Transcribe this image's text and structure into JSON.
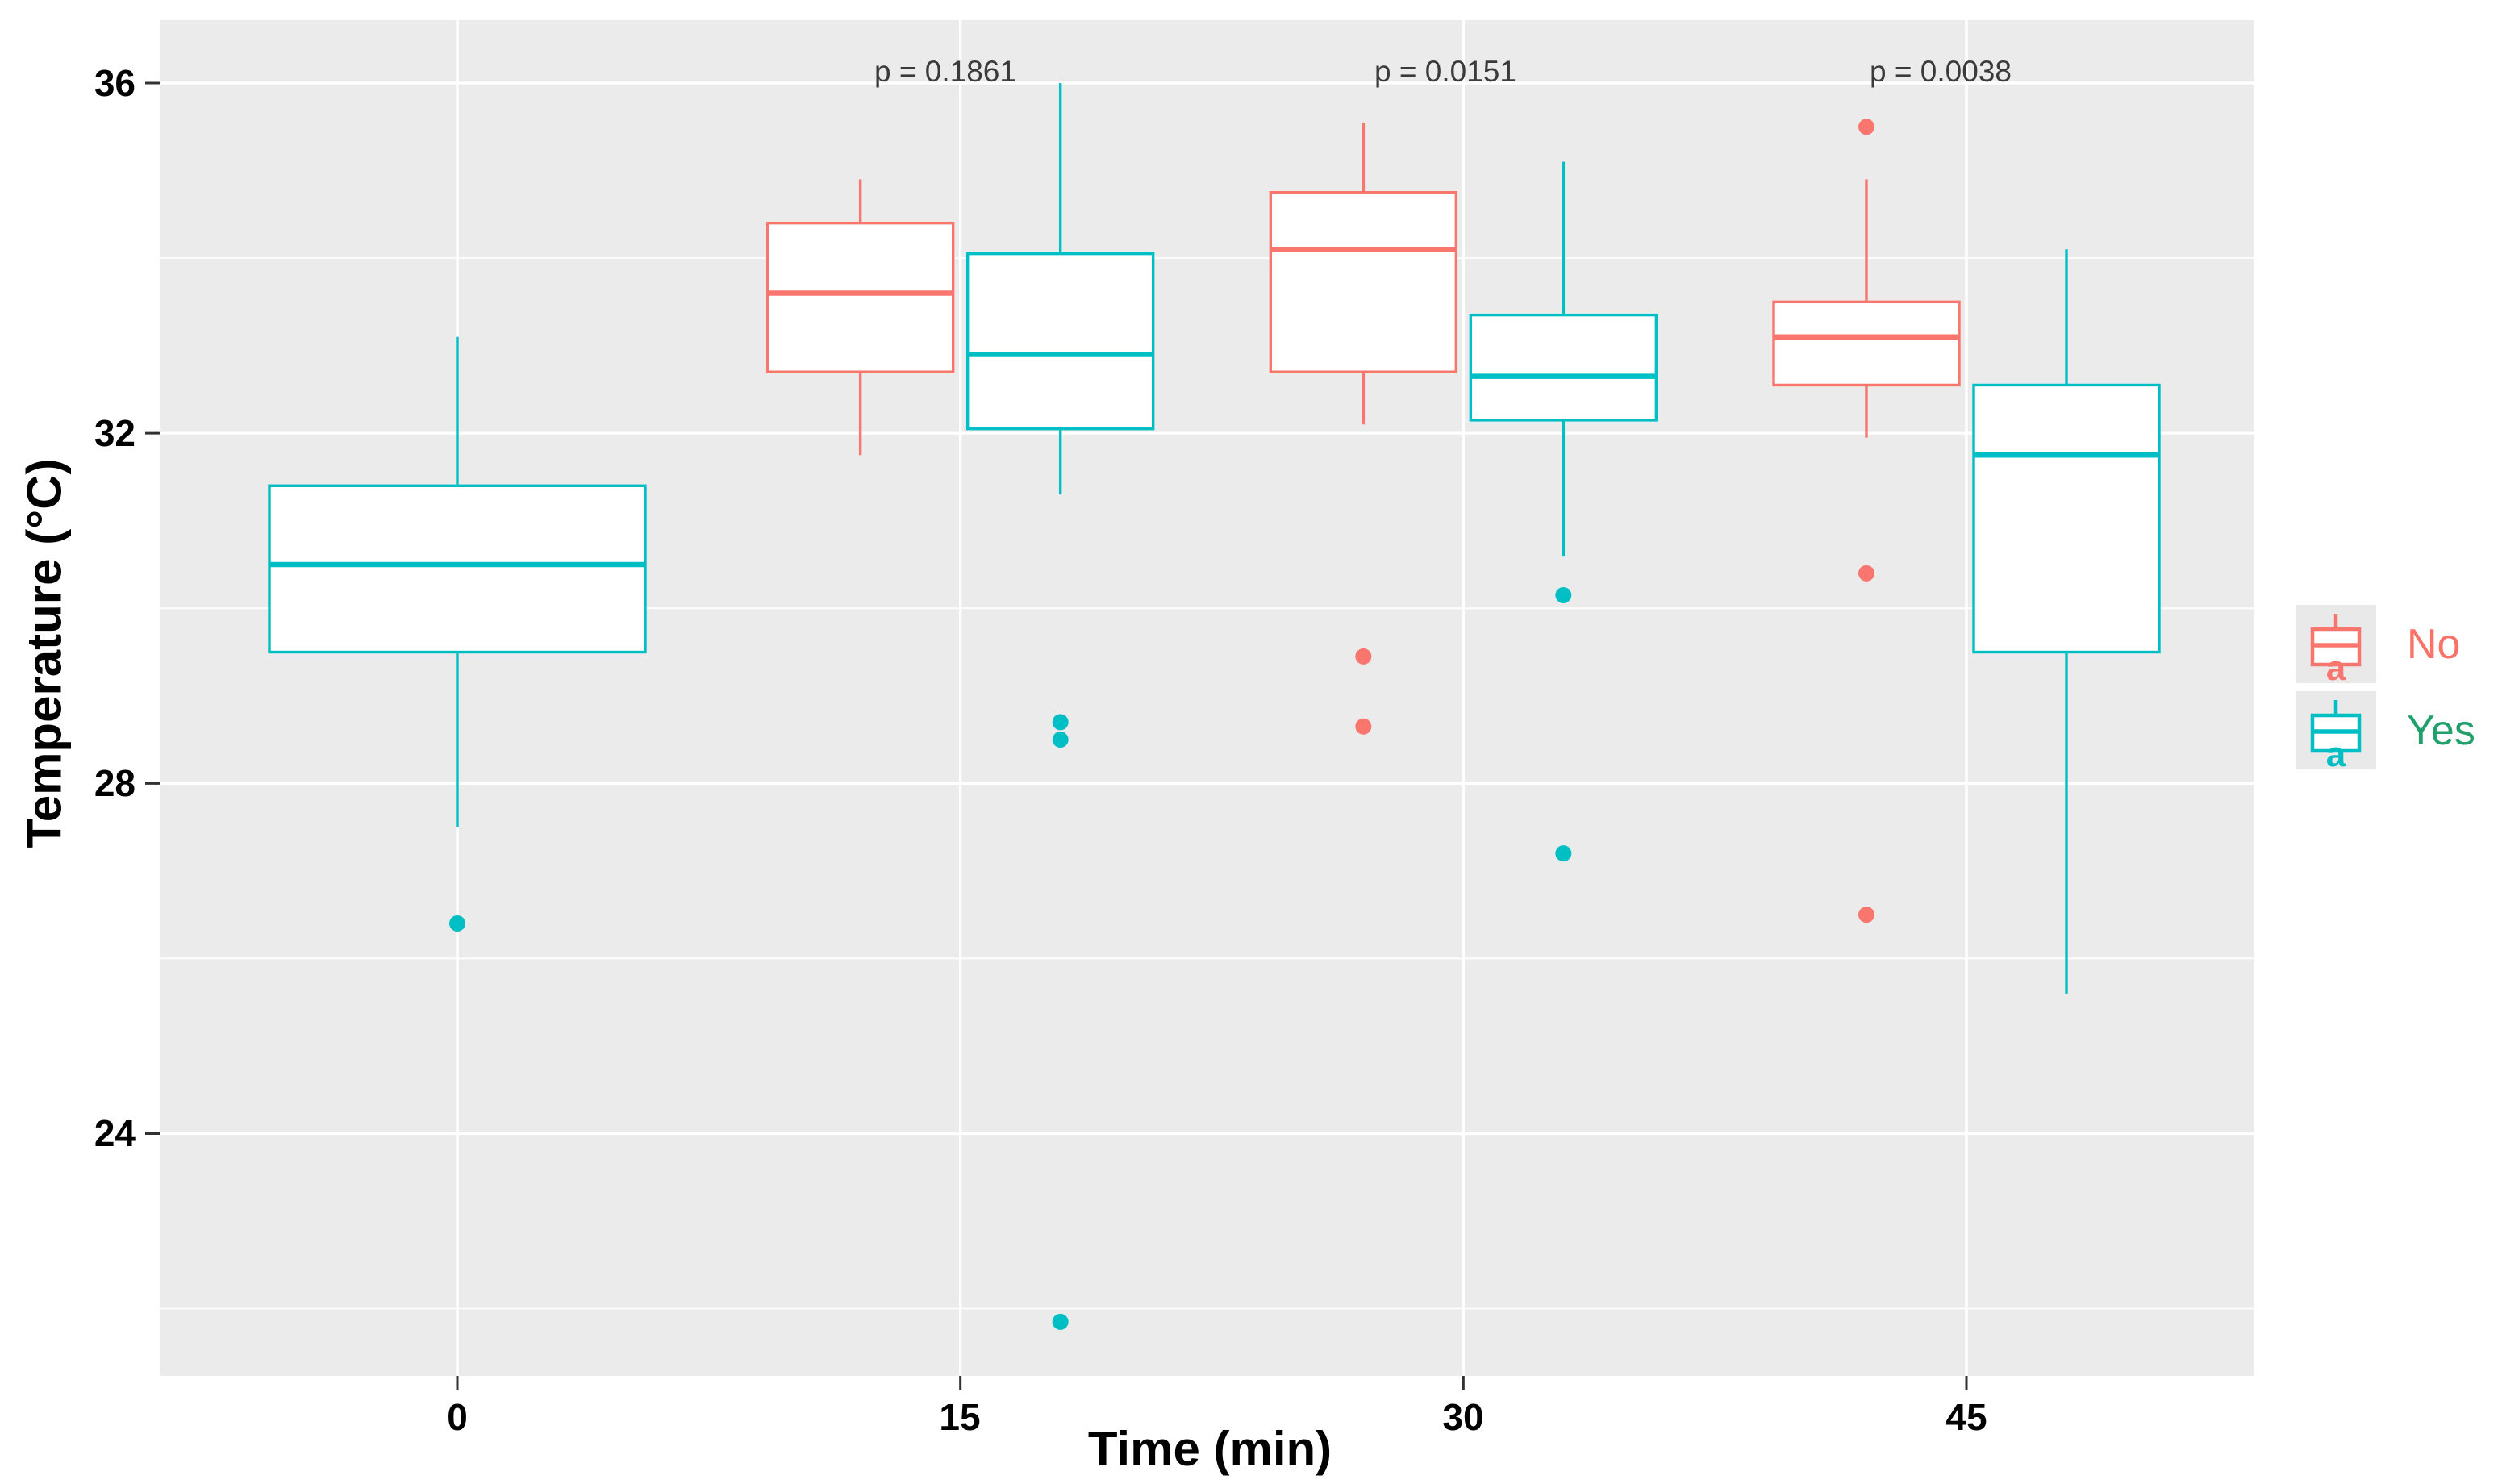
{
  "chart_data": {
    "type": "boxplot",
    "title": "",
    "xlabel": "Time (min)",
    "ylabel": "Temperature (°C)",
    "x_categories": [
      "0",
      "15",
      "30",
      "45"
    ],
    "y_tick_labels": [
      "36",
      "32",
      "28",
      "24"
    ],
    "y_major_ticks": [
      36,
      32,
      28,
      24
    ],
    "y_minor_ticks": [
      34,
      30,
      26,
      22
    ],
    "ylim": [
      21.2,
      36.7
    ],
    "grid": "white gridlines on gray panel",
    "legend_position": "right",
    "panel_color": "#EBEBEB",
    "gridline_color": "#FFFFFF",
    "groups": [
      {
        "name": "No",
        "color": "#F8766D"
      },
      {
        "name": "Yes",
        "color": "#00BFC4"
      }
    ],
    "series": [
      {
        "x": "0",
        "group": "Yes",
        "wide": true,
        "whisker_low": 27.5,
        "q1": 29.5,
        "median": 30.5,
        "q3": 31.4,
        "whisker_high": 33.1,
        "outliers": [
          26.4
        ]
      },
      {
        "x": "15",
        "group": "No",
        "wide": false,
        "whisker_low": 31.75,
        "q1": 32.7,
        "median": 33.6,
        "q3": 34.4,
        "whisker_high": 34.9,
        "outliers": []
      },
      {
        "x": "15",
        "group": "Yes",
        "wide": false,
        "whisker_low": 31.3,
        "q1": 32.05,
        "median": 32.9,
        "q3": 34.05,
        "whisker_high": 36.0,
        "outliers": [
          28.7,
          28.5,
          21.85
        ]
      },
      {
        "x": "30",
        "group": "No",
        "wide": false,
        "whisker_low": 32.1,
        "q1": 32.7,
        "median": 34.1,
        "q3": 34.75,
        "whisker_high": 35.55,
        "outliers": [
          29.45,
          28.65
        ]
      },
      {
        "x": "30",
        "group": "Yes",
        "wide": false,
        "whisker_low": 30.6,
        "q1": 32.15,
        "median": 32.65,
        "q3": 33.35,
        "whisker_high": 35.1,
        "outliers": [
          30.15,
          27.2
        ]
      },
      {
        "x": "45",
        "group": "No",
        "wide": false,
        "whisker_low": 31.95,
        "q1": 32.55,
        "median": 33.1,
        "q3": 33.5,
        "whisker_high": 34.9,
        "outliers": [
          35.5,
          30.4,
          26.5
        ]
      },
      {
        "x": "45",
        "group": "Yes",
        "wide": false,
        "whisker_low": 25.6,
        "q1": 29.5,
        "median": 31.75,
        "q3": 32.55,
        "whisker_high": 34.1,
        "outliers": []
      }
    ],
    "annotations": [
      {
        "x": "15",
        "label": "p = 0.1861"
      },
      {
        "x": "30",
        "label": "p = 0.0151"
      },
      {
        "x": "45",
        "label": "p = 0.0038"
      }
    ]
  },
  "legend": {
    "key_letter": "a",
    "items": [
      {
        "label": "No",
        "key_color": "#F8766D",
        "label_color": "#FA7268"
      },
      {
        "label": "Yes",
        "key_color": "#00BFC4",
        "label_color": "#22A06B"
      }
    ]
  }
}
